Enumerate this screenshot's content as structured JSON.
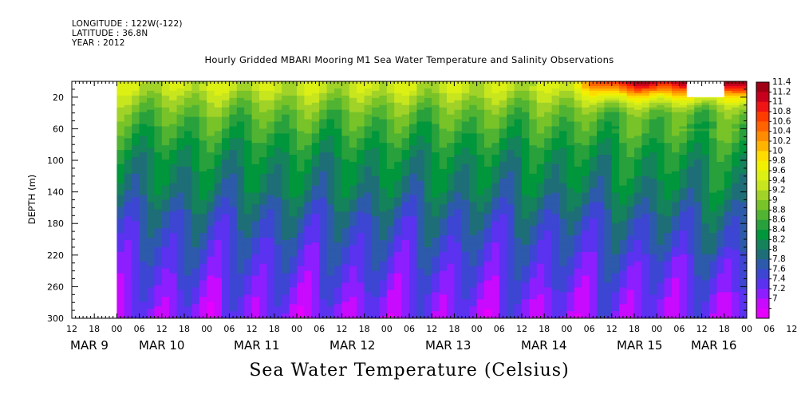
{
  "header": {
    "longitude": "LONGITUDE : 122W(-122)",
    "latitude": "LATITUDE : 36.8N",
    "year": "YEAR : 2012"
  },
  "chart_data": {
    "type": "heatmap",
    "title": "Hourly Gridded MBARI Mooring M1 Sea Water Temperature and Salinity Observations",
    "colorbar_label": "Sea Water Temperature (Celsius)",
    "ylabel": "DEPTH (m)",
    "ylim": [
      300,
      0
    ],
    "y_ticks": [
      20,
      60,
      100,
      140,
      180,
      220,
      260,
      300
    ],
    "x_hour_ticks": [
      "12",
      "18",
      "00",
      "06",
      "12",
      "18",
      "00",
      "06",
      "12",
      "18",
      "00",
      "06",
      "12",
      "18",
      "00",
      "06",
      "12",
      "18",
      "00",
      "06",
      "12",
      "18",
      "00",
      "06",
      "12",
      "18",
      "00",
      "06",
      "12",
      "18",
      "00",
      "06",
      "12"
    ],
    "x_day_labels": [
      "MAR  9",
      "MAR 10",
      "MAR 11",
      "MAR 12",
      "MAR 13",
      "MAR 14",
      "MAR 15",
      "MAR 16"
    ],
    "data_start": "MAR 9 00:00",
    "data_end": "MAR 16 12:00",
    "colorbar_levels": [
      "11.4",
      "11.2",
      "11",
      "10.8",
      "10.6",
      "10.4",
      "10.2",
      "10",
      "9.8",
      "9.6",
      "9.4",
      "9.2",
      "9",
      "8.8",
      "8.6",
      "8.4",
      "8.2",
      "8",
      "7.8",
      "7.6",
      "7.4",
      "7.2",
      "7"
    ],
    "colorbar_colors": [
      "#a00014",
      "#c8001e",
      "#f01414",
      "#ff3c00",
      "#ff6400",
      "#ff8c00",
      "#ffb400",
      "#ffdc00",
      "#f0f000",
      "#dcf014",
      "#c8e61e",
      "#a0d228",
      "#78c328",
      "#50b432",
      "#28a03c",
      "#00963c",
      "#14825a",
      "#1e6e78",
      "#2d5aaa",
      "#3c46d2",
      "#5a32f0",
      "#8c1eff",
      "#c80aff",
      "#e600ff"
    ],
    "depth_profile_typical": [
      {
        "depth": 10,
        "temperature": 9.5
      },
      {
        "depth": 20,
        "temperature": 9.3
      },
      {
        "depth": 40,
        "temperature": 9.0
      },
      {
        "depth": 60,
        "temperature": 8.8
      },
      {
        "depth": 80,
        "temperature": 8.6
      },
      {
        "depth": 100,
        "temperature": 8.4
      },
      {
        "depth": 120,
        "temperature": 8.3
      },
      {
        "depth": 140,
        "temperature": 8.2
      },
      {
        "depth": 160,
        "temperature": 8.0
      },
      {
        "depth": 180,
        "temperature": 7.85
      },
      {
        "depth": 200,
        "temperature": 7.75
      },
      {
        "depth": 220,
        "temperature": 7.65
      },
      {
        "depth": 240,
        "temperature": 7.55
      },
      {
        "depth": 260,
        "temperature": 7.45
      },
      {
        "depth": 280,
        "temperature": 7.35
      },
      {
        "depth": 300,
        "temperature": 7.3
      }
    ],
    "surface_warming": {
      "start": "MAR 14 06:00",
      "surface_max_temperature": 11.4,
      "warm_layer_depth_m": 40
    },
    "missing_data_block": {
      "time_start": "MAR 15 08:00",
      "time_end": "MAR 15 18:00",
      "depth_range": [
        0,
        20
      ]
    }
  }
}
